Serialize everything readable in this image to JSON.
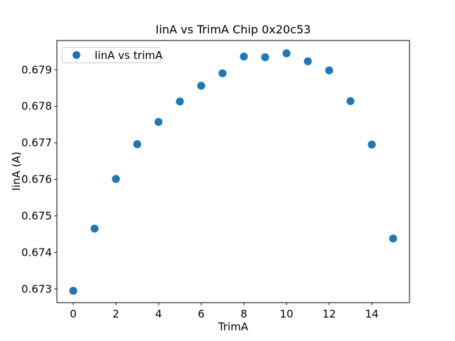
{
  "chart_data": {
    "type": "scatter",
    "title": "IinA vs TrimA Chip 0x20c53",
    "xlabel": "TrimA",
    "ylabel": "IinA (A)",
    "legend_label": "IinA vs trimA",
    "legend_position": "upper left",
    "marker_color": "#1f77b4",
    "axis_color": "#000000",
    "grid": false,
    "x": [
      0,
      1,
      2,
      3,
      4,
      5,
      6,
      7,
      8,
      9,
      10,
      11,
      12,
      13,
      14,
      15
    ],
    "y": [
      0.67295,
      0.67465,
      0.67601,
      0.67696,
      0.67757,
      0.67813,
      0.67856,
      0.6789,
      0.67936,
      0.67934,
      0.67945,
      0.67923,
      0.67898,
      0.67814,
      0.67695,
      0.67438
    ],
    "xticks": [
      0,
      2,
      4,
      6,
      8,
      10,
      12,
      14
    ],
    "yticks": [
      0.673,
      0.674,
      0.675,
      0.676,
      0.677,
      0.678,
      0.679
    ],
    "xlim": [
      -0.767,
      15.767
    ],
    "ylim": [
      0.672625,
      0.679799
    ],
    "ytick_decimals": 3
  }
}
